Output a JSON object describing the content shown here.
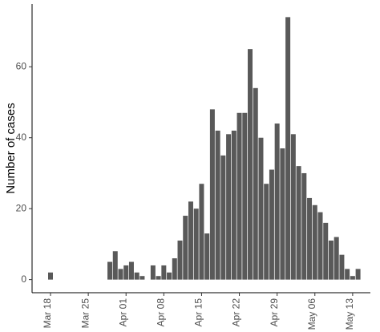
{
  "chart_data": {
    "type": "bar",
    "y_label": "Number of cases",
    "categories": [
      "Mar 18",
      null,
      null,
      null,
      null,
      null,
      null,
      "Mar 25",
      null,
      null,
      null,
      null,
      null,
      null,
      "Apr 01",
      null,
      null,
      null,
      null,
      null,
      null,
      "Apr 08",
      null,
      null,
      null,
      null,
      null,
      null,
      "Apr 15",
      null,
      null,
      null,
      null,
      null,
      null,
      "Apr 22",
      null,
      null,
      null,
      null,
      null,
      null,
      "Apr 29",
      null,
      null,
      null,
      null,
      null,
      null,
      "May 06",
      null,
      null,
      null,
      null,
      null,
      null,
      "May 13",
      null
    ],
    "values": [
      2,
      0,
      0,
      0,
      0,
      0,
      0,
      0,
      0,
      0,
      0,
      5,
      8,
      3,
      4,
      5,
      2,
      1,
      0,
      4,
      1,
      4,
      2,
      6,
      11,
      18,
      22,
      20,
      27,
      13,
      48,
      42,
      35,
      41,
      42,
      47,
      47,
      65,
      54,
      40,
      27,
      31,
      44,
      37,
      74,
      41,
      32,
      30,
      23,
      21,
      19,
      16,
      11,
      12,
      7,
      3,
      1,
      3
    ],
    "color": "#595959",
    "ylim": [
      -3.7,
      77.7
    ],
    "yticks": [
      0,
      20,
      40,
      60
    ],
    "grid": false
  }
}
